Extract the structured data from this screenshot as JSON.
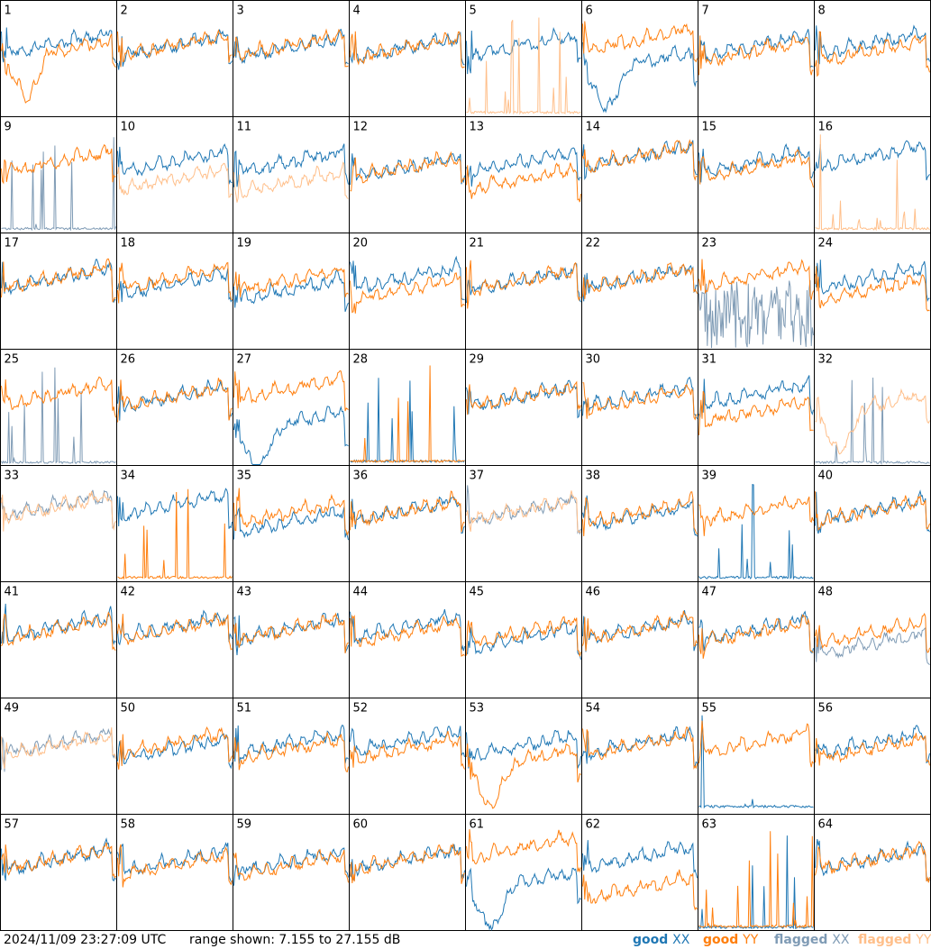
{
  "footer": {
    "timestamp": "2024/11/09 23:27:09 UTC",
    "range": "range shown: 7.155 to 27.155 dB"
  },
  "legend": [
    {
      "key": "good_xx",
      "word": "good",
      "pol": "XX",
      "color": "#1f77b4"
    },
    {
      "key": "good_yy",
      "word": "good",
      "pol": "YY",
      "color": "#ff7f0e"
    },
    {
      "key": "flagged_xx",
      "word": "flagged",
      "pol": "XX",
      "color": "#7f9bb5"
    },
    {
      "key": "flagged_yy",
      "word": "flagged",
      "pol": "YY",
      "color": "#ffbf8a"
    }
  ],
  "chart_data": {
    "type": "line",
    "layout": "8x8 small multiples, one panel per tile",
    "ylim_db": [
      7.155,
      27.155
    ],
    "x_axis": "frequency channel (unlabeled)",
    "series_names": [
      "XX",
      "YY"
    ],
    "panel_labels": [
      "1",
      "2",
      "3",
      "4",
      "5",
      "6",
      "7",
      "8",
      "9",
      "10",
      "11",
      "12",
      "13",
      "14",
      "15",
      "16",
      "17",
      "18",
      "19",
      "20",
      "21",
      "22",
      "23",
      "24",
      "25",
      "26",
      "27",
      "28",
      "29",
      "30",
      "31",
      "32",
      "33",
      "34",
      "35",
      "36",
      "37",
      "38",
      "39",
      "40",
      "41",
      "42",
      "43",
      "44",
      "45",
      "46",
      "47",
      "48",
      "49",
      "50",
      "51",
      "52",
      "53",
      "54",
      "55",
      "56",
      "57",
      "58",
      "59",
      "60",
      "61",
      "62",
      "63",
      "64"
    ],
    "panel_notes": "Approximate spectra read from plots; overall level (0-1 of range), shape profile, and flag status per polarization.",
    "panels": [
      {
        "id": "1",
        "xx": {
          "s": "good",
          "shape": "normal",
          "level": 0.62
        },
        "yy": {
          "s": "good",
          "shape": "dip",
          "level": 0.55
        }
      },
      {
        "id": "2",
        "xx": {
          "s": "good",
          "shape": "normal",
          "level": 0.6
        },
        "yy": {
          "s": "good",
          "shape": "normal",
          "level": 0.6
        }
      },
      {
        "id": "3",
        "xx": {
          "s": "good",
          "shape": "normal",
          "level": 0.58
        },
        "yy": {
          "s": "good",
          "shape": "normal",
          "level": 0.6
        }
      },
      {
        "id": "4",
        "xx": {
          "s": "good",
          "shape": "normal",
          "level": 0.58
        },
        "yy": {
          "s": "good",
          "shape": "normal",
          "level": 0.58
        }
      },
      {
        "id": "5",
        "xx": {
          "s": "good",
          "shape": "normal",
          "level": 0.6
        },
        "yy": {
          "s": "flagged",
          "shape": "spiky",
          "level": 0.02
        }
      },
      {
        "id": "6",
        "xx": {
          "s": "good",
          "shape": "dip",
          "level": 0.45
        },
        "yy": {
          "s": "good",
          "shape": "normal",
          "level": 0.65
        }
      },
      {
        "id": "7",
        "xx": {
          "s": "good",
          "shape": "normal",
          "level": 0.6
        },
        "yy": {
          "s": "good",
          "shape": "normal",
          "level": 0.55
        }
      },
      {
        "id": "8",
        "xx": {
          "s": "good",
          "shape": "normal",
          "level": 0.62
        },
        "yy": {
          "s": "good",
          "shape": "normal",
          "level": 0.55
        }
      },
      {
        "id": "9",
        "xx": {
          "s": "flagged",
          "shape": "spiky",
          "level": 0.02
        },
        "yy": {
          "s": "good",
          "shape": "normal",
          "level": 0.6
        }
      },
      {
        "id": "10",
        "xx": {
          "s": "good",
          "shape": "normal",
          "level": 0.6
        },
        "yy": {
          "s": "flagged",
          "shape": "normal",
          "level": 0.45
        }
      },
      {
        "id": "11",
        "xx": {
          "s": "good",
          "shape": "normal",
          "level": 0.6
        },
        "yy": {
          "s": "flagged",
          "shape": "normal",
          "level": 0.42
        }
      },
      {
        "id": "12",
        "xx": {
          "s": "good",
          "shape": "normal",
          "level": 0.55
        },
        "yy": {
          "s": "good",
          "shape": "normal",
          "level": 0.55
        }
      },
      {
        "id": "13",
        "xx": {
          "s": "good",
          "shape": "normal",
          "level": 0.6
        },
        "yy": {
          "s": "good",
          "shape": "normal",
          "level": 0.45
        }
      },
      {
        "id": "14",
        "xx": {
          "s": "good",
          "shape": "normal",
          "level": 0.65
        },
        "yy": {
          "s": "good",
          "shape": "normal",
          "level": 0.65
        }
      },
      {
        "id": "15",
        "xx": {
          "s": "good",
          "shape": "normal",
          "level": 0.6
        },
        "yy": {
          "s": "good",
          "shape": "normal",
          "level": 0.55
        }
      },
      {
        "id": "16",
        "xx": {
          "s": "good",
          "shape": "normal",
          "level": 0.65
        },
        "yy": {
          "s": "flagged",
          "shape": "spiky",
          "level": 0.02
        }
      },
      {
        "id": "17",
        "xx": {
          "s": "good",
          "shape": "normal",
          "level": 0.6
        },
        "yy": {
          "s": "good",
          "shape": "normal",
          "level": 0.6
        }
      },
      {
        "id": "18",
        "xx": {
          "s": "good",
          "shape": "normal",
          "level": 0.55
        },
        "yy": {
          "s": "good",
          "shape": "normal",
          "level": 0.6
        }
      },
      {
        "id": "19",
        "xx": {
          "s": "good",
          "shape": "normal",
          "level": 0.5
        },
        "yy": {
          "s": "good",
          "shape": "normal",
          "level": 0.58
        }
      },
      {
        "id": "20",
        "xx": {
          "s": "good",
          "shape": "normal",
          "level": 0.6
        },
        "yy": {
          "s": "good",
          "shape": "normal",
          "level": 0.5
        }
      },
      {
        "id": "21",
        "xx": {
          "s": "good",
          "shape": "normal",
          "level": 0.58
        },
        "yy": {
          "s": "good",
          "shape": "normal",
          "level": 0.58
        }
      },
      {
        "id": "22",
        "xx": {
          "s": "good",
          "shape": "normal",
          "level": 0.6
        },
        "yy": {
          "s": "good",
          "shape": "normal",
          "level": 0.6
        }
      },
      {
        "id": "23",
        "xx": {
          "s": "flagged",
          "shape": "noisy",
          "level": 0.3
        },
        "yy": {
          "s": "good",
          "shape": "normal",
          "level": 0.62
        }
      },
      {
        "id": "24",
        "xx": {
          "s": "good",
          "shape": "normal",
          "level": 0.6
        },
        "yy": {
          "s": "good",
          "shape": "normal",
          "level": 0.5
        }
      },
      {
        "id": "25",
        "xx": {
          "s": "flagged",
          "shape": "spiky",
          "level": 0.01
        },
        "yy": {
          "s": "good",
          "shape": "normal",
          "level": 0.6
        }
      },
      {
        "id": "26",
        "xx": {
          "s": "good",
          "shape": "normal",
          "level": 0.58
        },
        "yy": {
          "s": "good",
          "shape": "normal",
          "level": 0.58
        }
      },
      {
        "id": "27",
        "xx": {
          "s": "good",
          "shape": "dip",
          "level": 0.35
        },
        "yy": {
          "s": "good",
          "shape": "normal",
          "level": 0.65
        }
      },
      {
        "id": "28",
        "xx": {
          "s": "good",
          "shape": "spiky",
          "level": 0.02
        },
        "yy": {
          "s": "good",
          "shape": "spiky",
          "level": 0.02
        }
      },
      {
        "id": "29",
        "xx": {
          "s": "good",
          "shape": "normal",
          "level": 0.58
        },
        "yy": {
          "s": "good",
          "shape": "normal",
          "level": 0.58
        }
      },
      {
        "id": "30",
        "xx": {
          "s": "good",
          "shape": "normal",
          "level": 0.58
        },
        "yy": {
          "s": "good",
          "shape": "normal",
          "level": 0.55
        }
      },
      {
        "id": "31",
        "xx": {
          "s": "good",
          "shape": "normal",
          "level": 0.6
        },
        "yy": {
          "s": "good",
          "shape": "normal",
          "level": 0.45
        }
      },
      {
        "id": "32",
        "xx": {
          "s": "flagged",
          "shape": "spiky",
          "level": 0.01
        },
        "yy": {
          "s": "flagged",
          "shape": "dip",
          "level": 0.5
        }
      },
      {
        "id": "33",
        "xx": {
          "s": "flagged",
          "shape": "normal",
          "level": 0.65
        },
        "yy": {
          "s": "flagged",
          "shape": "normal",
          "level": 0.63
        }
      },
      {
        "id": "34",
        "xx": {
          "s": "good",
          "shape": "normal",
          "level": 0.65
        },
        "yy": {
          "s": "good",
          "shape": "spiky",
          "level": 0.02
        }
      },
      {
        "id": "35",
        "xx": {
          "s": "good",
          "shape": "normal",
          "level": 0.5
        },
        "yy": {
          "s": "good",
          "shape": "normal",
          "level": 0.58
        }
      },
      {
        "id": "36",
        "xx": {
          "s": "good",
          "shape": "normal",
          "level": 0.6
        },
        "yy": {
          "s": "good",
          "shape": "normal",
          "level": 0.6
        }
      },
      {
        "id": "37",
        "xx": {
          "s": "flagged",
          "shape": "normal",
          "level": 0.6
        },
        "yy": {
          "s": "flagged",
          "shape": "normal",
          "level": 0.6
        }
      },
      {
        "id": "38",
        "xx": {
          "s": "good",
          "shape": "normal",
          "level": 0.55
        },
        "yy": {
          "s": "good",
          "shape": "normal",
          "level": 0.58
        }
      },
      {
        "id": "39",
        "xx": {
          "s": "good",
          "shape": "spiky",
          "level": 0.02
        },
        "yy": {
          "s": "good",
          "shape": "normal",
          "level": 0.6
        }
      },
      {
        "id": "40",
        "xx": {
          "s": "good",
          "shape": "normal",
          "level": 0.6
        },
        "yy": {
          "s": "good",
          "shape": "normal",
          "level": 0.6
        }
      },
      {
        "id": "41",
        "xx": {
          "s": "good",
          "shape": "normal",
          "level": 0.6
        },
        "yy": {
          "s": "good",
          "shape": "normal",
          "level": 0.58
        }
      },
      {
        "id": "42",
        "xx": {
          "s": "good",
          "shape": "normal",
          "level": 0.6
        },
        "yy": {
          "s": "good",
          "shape": "normal",
          "level": 0.58
        }
      },
      {
        "id": "43",
        "xx": {
          "s": "good",
          "shape": "normal",
          "level": 0.58
        },
        "yy": {
          "s": "good",
          "shape": "normal",
          "level": 0.58
        }
      },
      {
        "id": "44",
        "xx": {
          "s": "good",
          "shape": "normal",
          "level": 0.6
        },
        "yy": {
          "s": "good",
          "shape": "normal",
          "level": 0.55
        }
      },
      {
        "id": "45",
        "xx": {
          "s": "good",
          "shape": "normal",
          "level": 0.5
        },
        "yy": {
          "s": "good",
          "shape": "normal",
          "level": 0.55
        }
      },
      {
        "id": "46",
        "xx": {
          "s": "good",
          "shape": "normal",
          "level": 0.58
        },
        "yy": {
          "s": "good",
          "shape": "normal",
          "level": 0.58
        }
      },
      {
        "id": "47",
        "xx": {
          "s": "good",
          "shape": "normal",
          "level": 0.58
        },
        "yy": {
          "s": "good",
          "shape": "normal",
          "level": 0.55
        }
      },
      {
        "id": "48",
        "xx": {
          "s": "flagged",
          "shape": "normal",
          "level": 0.45
        },
        "yy": {
          "s": "good",
          "shape": "normal",
          "level": 0.55
        }
      },
      {
        "id": "49",
        "xx": {
          "s": "flagged",
          "shape": "normal",
          "level": 0.6
        },
        "yy": {
          "s": "flagged",
          "shape": "normal",
          "level": 0.58
        }
      },
      {
        "id": "50",
        "xx": {
          "s": "good",
          "shape": "normal",
          "level": 0.55
        },
        "yy": {
          "s": "good",
          "shape": "normal",
          "level": 0.6
        }
      },
      {
        "id": "51",
        "xx": {
          "s": "good",
          "shape": "normal",
          "level": 0.6
        },
        "yy": {
          "s": "good",
          "shape": "normal",
          "level": 0.55
        }
      },
      {
        "id": "52",
        "xx": {
          "s": "good",
          "shape": "normal",
          "level": 0.62
        },
        "yy": {
          "s": "good",
          "shape": "normal",
          "level": 0.55
        }
      },
      {
        "id": "53",
        "xx": {
          "s": "good",
          "shape": "normal",
          "level": 0.58
        },
        "yy": {
          "s": "good",
          "shape": "dip",
          "level": 0.45
        }
      },
      {
        "id": "54",
        "xx": {
          "s": "good",
          "shape": "normal",
          "level": 0.6
        },
        "yy": {
          "s": "good",
          "shape": "normal",
          "level": 0.58
        }
      },
      {
        "id": "55",
        "xx": {
          "s": "good",
          "shape": "spiky",
          "level": 0.05
        },
        "yy": {
          "s": "good",
          "shape": "normal",
          "level": 0.6
        }
      },
      {
        "id": "56",
        "xx": {
          "s": "good",
          "shape": "normal",
          "level": 0.6
        },
        "yy": {
          "s": "good",
          "shape": "normal",
          "level": 0.55
        }
      },
      {
        "id": "57",
        "xx": {
          "s": "good",
          "shape": "normal",
          "level": 0.6
        },
        "yy": {
          "s": "good",
          "shape": "normal",
          "level": 0.6
        }
      },
      {
        "id": "58",
        "xx": {
          "s": "good",
          "shape": "normal",
          "level": 0.58
        },
        "yy": {
          "s": "good",
          "shape": "normal",
          "level": 0.55
        }
      },
      {
        "id": "59",
        "xx": {
          "s": "good",
          "shape": "normal",
          "level": 0.58
        },
        "yy": {
          "s": "good",
          "shape": "normal",
          "level": 0.55
        }
      },
      {
        "id": "60",
        "xx": {
          "s": "good",
          "shape": "normal",
          "level": 0.6
        },
        "yy": {
          "s": "good",
          "shape": "normal",
          "level": 0.6
        }
      },
      {
        "id": "61",
        "xx": {
          "s": "good",
          "shape": "dip",
          "level": 0.4
        },
        "yy": {
          "s": "good",
          "shape": "normal",
          "level": 0.7
        }
      },
      {
        "id": "62",
        "xx": {
          "s": "good",
          "shape": "normal",
          "level": 0.62
        },
        "yy": {
          "s": "good",
          "shape": "normal",
          "level": 0.35
        }
      },
      {
        "id": "63",
        "xx": {
          "s": "good",
          "shape": "spiky",
          "level": 0.01
        },
        "yy": {
          "s": "good",
          "shape": "spiky",
          "level": 0.02
        }
      },
      {
        "id": "64",
        "xx": {
          "s": "good",
          "shape": "normal",
          "level": 0.6
        },
        "yy": {
          "s": "good",
          "shape": "normal",
          "level": 0.6
        }
      }
    ]
  }
}
